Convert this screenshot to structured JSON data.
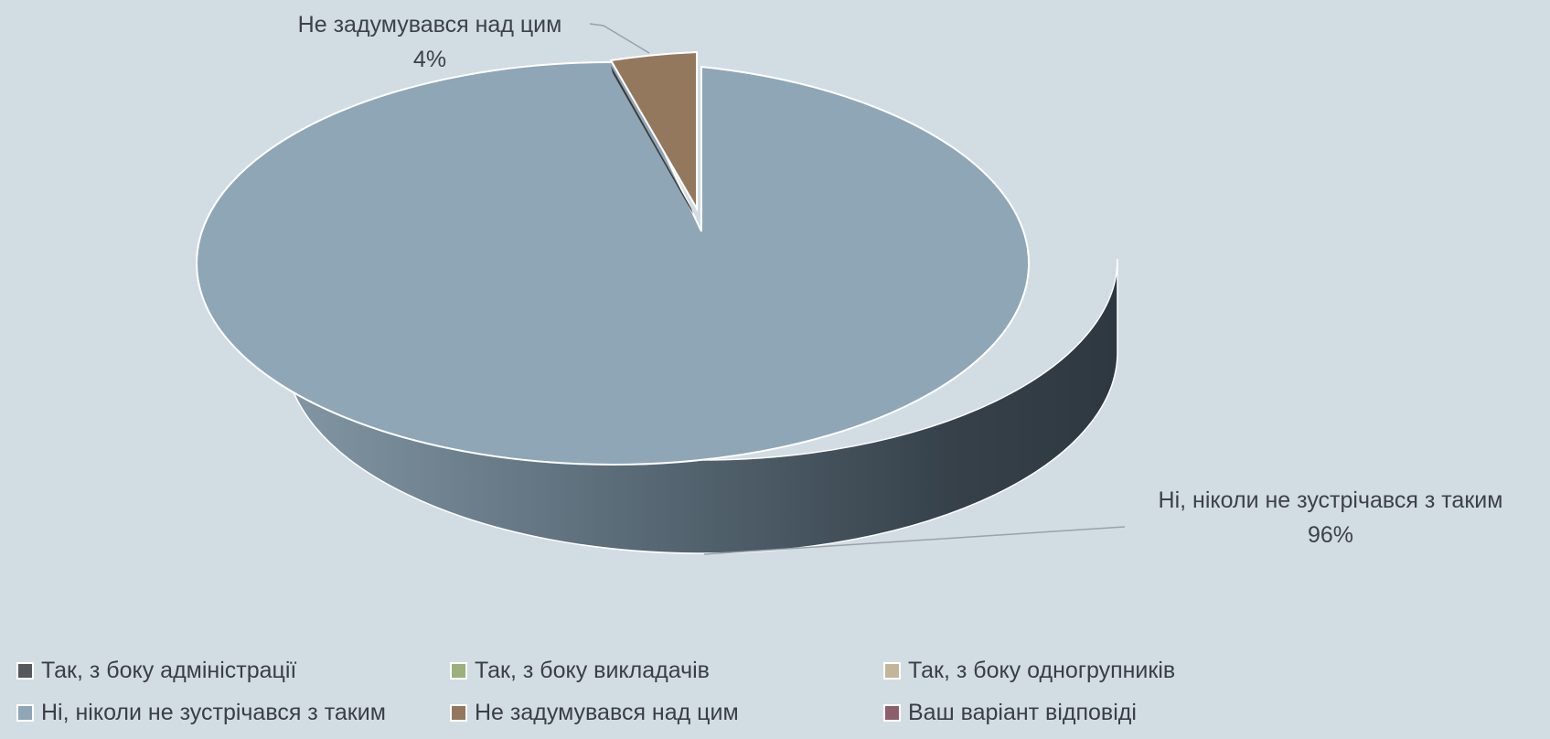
{
  "chart_data": {
    "type": "pie",
    "style": "3d",
    "slices": [
      {
        "label": "Так, з боку адміністрації",
        "value": 0,
        "color": "#55585c"
      },
      {
        "label": "Так, з боку викладачів",
        "value": 0,
        "color": "#9bb07a"
      },
      {
        "label": "Так, з боку одногрупників",
        "value": 0,
        "color": "#c2b59a"
      },
      {
        "label": "Ні, ніколи не зустрічався з таким",
        "value": 96,
        "color": "#8ea6b6"
      },
      {
        "label": "Не задумувався над цим",
        "value": 4,
        "color": "#94785d"
      },
      {
        "label": "Ваш варіант відповіді",
        "value": 0,
        "color": "#8e5f6a"
      }
    ],
    "data_labels": [
      {
        "name": "Не задумувався над цим",
        "percent": "4%"
      },
      {
        "name": "Ні, ніколи не зустрічався з таким",
        "percent": "96%"
      }
    ],
    "legend": [
      "Так, з боку адміністрації",
      "Так, з боку викладачів",
      "Так, з боку одногрупників",
      "Ні, ніколи не зустрічався з таким",
      "Не задумувався над цим",
      "Ваш варіант відповіді"
    ],
    "legend_position": "bottom",
    "background": "#d2dce3"
  }
}
